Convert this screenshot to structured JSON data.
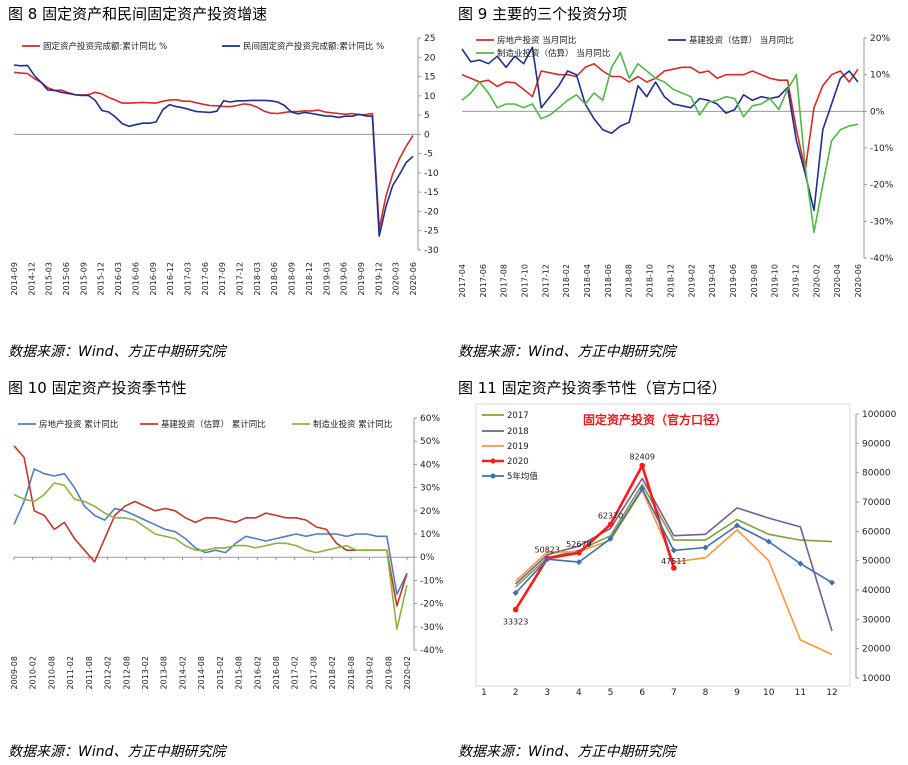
{
  "figures": [
    {
      "title": "图  8   固定资产和民间固定资产投资增速",
      "source": "数据来源：Wind、方正中期研究院"
    },
    {
      "title": "图  9   主要的三个投资分项",
      "source": "数据来源：Wind、方正中期研究院"
    },
    {
      "title": "图  10   固定资产投资季节性",
      "source": "数据来源：Wind、方正中期研究院"
    },
    {
      "title": "图  11   固定资产投资季节性（官方口径）",
      "source": "数据来源：Wind、方正中期研究院"
    }
  ],
  "colors": {
    "red": "#d42a2a",
    "navy": "#1f2f8a",
    "green": "#4fb848",
    "blue": "#4f7fc0",
    "darkred": "#c0392b",
    "lime": "#8db33a",
    "olive": "#7aa33a",
    "purple": "#7e5a8f",
    "orange": "#f39a3a",
    "bright": "#ff1a1a",
    "steel": "#3f6fb0"
  },
  "chart_data": [
    {
      "type": "line",
      "title": "图  8   固定资产和民间固定资产投资增速",
      "yaxis_side": "right",
      "ylim": [
        -30,
        25
      ],
      "ticks": [
        25,
        20,
        15,
        10,
        5,
        0,
        -5,
        -10,
        -15,
        -20,
        -25,
        -30
      ],
      "x_labels": [
        "2014-09",
        "2014-12",
        "2015-03",
        "2015-06",
        "2015-09",
        "2015-12",
        "2016-03",
        "2016-06",
        "2016-09",
        "2016-12",
        "2017-03",
        "2017-06",
        "2017-09",
        "2017-12",
        "2018-03",
        "2018-06",
        "2018-09",
        "2018-12",
        "2019-03",
        "2019-06",
        "2019-09",
        "2019-12",
        "2020-03",
        "2020-06"
      ],
      "series": [
        {
          "name": "固定资产投资完成额:累计同比  %",
          "color": "#d42a2a",
          "values": [
            16.1,
            15.9,
            15.8,
            14.5,
            13.5,
            12.1,
            11.4,
            11.5,
            10.8,
            10.3,
            10.2,
            10.3,
            10.9,
            10.5,
            9.6,
            8.9,
            8.1,
            8.1,
            8.2,
            8.3,
            8.2,
            8.1,
            8.6,
            8.9,
            9.0,
            8.6,
            8.6,
            8.2,
            7.8,
            7.5,
            7.4,
            7.2,
            7.2,
            7.5,
            7.9,
            7.7,
            7.0,
            6.0,
            5.5,
            5.4,
            5.7,
            5.9,
            5.9,
            6.1,
            6.1,
            6.3,
            5.8,
            5.6,
            5.4,
            5.2,
            5.4,
            5.1,
            5.1,
            5.4,
            -24.5,
            -16.1,
            -10.3,
            -6.3,
            -3.1,
            -0.3
          ]
        },
        {
          "name": "民间固定资产投资完成额:累计同比  %",
          "color": "#1f2f8a",
          "values": [
            18.0,
            17.8,
            17.9,
            15.3,
            13.5,
            11.5,
            11.4,
            10.9,
            10.6,
            10.3,
            10.1,
            10.1,
            8.8,
            6.2,
            5.8,
            4.5,
            2.8,
            2.1,
            2.5,
            2.9,
            2.9,
            3.2,
            6.4,
            7.7,
            7.2,
            6.9,
            6.4,
            5.9,
            5.8,
            5.7,
            6.0,
            8.7,
            8.4,
            8.7,
            8.7,
            8.8,
            8.8,
            8.8,
            8.7,
            8.4,
            7.5,
            5.8,
            5.3,
            5.7,
            5.4,
            5.1,
            4.8,
            4.7,
            4.4,
            4.7,
            4.7,
            5.2,
            4.8,
            4.7,
            -26.4,
            -18.8,
            -13.3,
            -10.4,
            -7.3,
            -5.7
          ]
        }
      ]
    },
    {
      "type": "line",
      "title": "图  9   主要的三个投资分项",
      "yaxis_side": "right",
      "ylim": [
        -40,
        20
      ],
      "ticks": [
        "20%",
        "10%",
        "0%",
        "-10%",
        "-20%",
        "-30%",
        "-40%"
      ],
      "tick_values": [
        20,
        10,
        0,
        -10,
        -20,
        -30,
        -40
      ],
      "x_labels": [
        "2017-04",
        "2017-06",
        "2017-08",
        "2017-10",
        "2017-12",
        "2018-02",
        "2018-04",
        "2018-06",
        "2018-08",
        "2018-10",
        "2018-12",
        "2019-02",
        "2019-04",
        "2019-06",
        "2019-08",
        "2019-10",
        "2019-12",
        "2020-02",
        "2020-04",
        "2020-06"
      ],
      "series": [
        {
          "name": "房地产投资  当月同比",
          "color": "#d42a2a",
          "values": [
            10.0,
            9.0,
            8.0,
            8.5,
            6.8,
            8.0,
            7.8,
            6.0,
            4.0,
            11.0,
            10.5,
            10.0,
            10.0,
            9.5,
            12.0,
            13.0,
            11.0,
            9.5,
            9.5,
            8.0,
            9.5,
            8.0,
            9.0,
            11.0,
            11.5,
            12.0,
            12.0,
            10.5,
            11.0,
            9.0,
            10.0,
            10.0,
            10.0,
            11.0,
            10.0,
            9.0,
            8.5,
            8.5,
            -5.0,
            -16.0,
            1.0,
            7.0,
            10.0,
            11.0,
            8.0,
            11.5
          ]
        },
        {
          "name": "基建投资（估算）  当月同比",
          "color": "#1f2f8a",
          "values": [
            17.0,
            13.5,
            14.0,
            13.0,
            15.0,
            12.0,
            15.0,
            13.0,
            17.5,
            1.0,
            4.0,
            7.0,
            11.0,
            10.0,
            2.0,
            -2.0,
            -5.0,
            -6.0,
            -4.0,
            -3.0,
            7.0,
            4.0,
            8.0,
            4.0,
            2.0,
            1.5,
            1.0,
            3.5,
            3.0,
            2.0,
            -0.5,
            0.5,
            4.5,
            3.0,
            4.0,
            3.5,
            4.0,
            6.5,
            -8.0,
            -17.0,
            -27.0,
            -5.0,
            2.0,
            9.0,
            11.0,
            8.0
          ]
        },
        {
          "name": "制造业投资（估算）  当月同比",
          "color": "#4fb848",
          "values": [
            3.0,
            5.0,
            8.0,
            5.0,
            1.0,
            2.0,
            2.0,
            1.0,
            2.0,
            -2.0,
            -1.0,
            1.0,
            3.0,
            4.5,
            2.0,
            5.0,
            3.0,
            12.0,
            16.0,
            9.0,
            13.0,
            11.0,
            9.0,
            8.0,
            6.0,
            5.0,
            4.0,
            -1.0,
            2.5,
            3.0,
            4.0,
            3.5,
            -1.5,
            1.5,
            2.0,
            3.5,
            0.5,
            6.0,
            10.0,
            -15.0,
            -33.0,
            -20.0,
            -8.0,
            -5.0,
            -4.0,
            -3.5
          ]
        }
      ]
    },
    {
      "type": "line",
      "title": "图  10   固定资产投资季节性",
      "yaxis_side": "right",
      "ylim": [
        -40,
        60
      ],
      "ticks": [
        "60%",
        "50%",
        "40%",
        "30%",
        "20%",
        "10%",
        "0%",
        "-10%",
        "-20%",
        "-30%",
        "-40%"
      ],
      "tick_values": [
        60,
        50,
        40,
        30,
        20,
        10,
        0,
        -10,
        -20,
        -30,
        -40
      ],
      "x_labels": [
        "2009-08",
        "2010-02",
        "2010-08",
        "2011-02",
        "2011-08",
        "2012-02",
        "2012-08",
        "2013-02",
        "2013-08",
        "2014-02",
        "2014-08",
        "2015-02",
        "2015-08",
        "2016-02",
        "2016-08",
        "2017-02",
        "2017-08",
        "2018-02",
        "2018-08",
        "2019-02",
        "2019-08",
        "2020-02"
      ],
      "series": [
        {
          "name": "房地产投资  累计同比",
          "color": "#4f7fc0",
          "values": [
            14,
            24,
            38,
            36,
            35,
            36,
            30,
            22,
            18,
            16,
            21,
            20,
            18,
            16,
            14,
            12,
            11,
            8,
            4,
            2,
            3,
            2,
            6,
            9,
            8,
            7,
            8,
            9,
            10,
            9,
            10,
            10,
            10,
            9,
            10,
            10,
            9,
            9,
            -16,
            -7
          ]
        },
        {
          "name": "基建投资（估算）  累计同比",
          "color": "#c0392b",
          "values": [
            48,
            43,
            20,
            18,
            12,
            15,
            8,
            3,
            -2,
            8,
            18,
            22,
            24,
            22,
            20,
            21,
            20,
            17,
            15,
            17,
            17,
            16,
            15,
            17,
            17,
            19,
            18,
            17,
            17,
            16,
            13,
            12,
            6,
            3,
            3,
            3,
            3,
            3,
            -21,
            -7
          ]
        },
        {
          "name": "制造业投资  累计同比",
          "color": "#8db33a",
          "values": [
            27,
            25,
            24,
            27,
            32,
            31,
            25,
            24,
            22,
            19,
            17,
            17,
            16,
            13,
            10,
            9,
            8,
            5,
            3,
            3,
            4,
            4,
            5,
            5,
            4,
            5,
            6,
            6,
            5,
            3,
            2,
            3,
            4,
            5,
            3,
            3,
            3,
            3,
            -31,
            -12
          ]
        }
      ]
    },
    {
      "type": "line",
      "title": "固定资产投资（官方口径）",
      "header": "图  11   固定资产投资季节性（官方口径）",
      "yaxis_side": "right",
      "ylim": [
        10000,
        100000
      ],
      "ticks": [
        100000,
        90000,
        80000,
        70000,
        60000,
        50000,
        40000,
        30000,
        20000,
        10000
      ],
      "categories": [
        "1",
        "2",
        "3",
        "4",
        "5",
        "6",
        "7",
        "8",
        "9",
        "10",
        "11",
        "12"
      ],
      "series": [
        {
          "name": "2017",
          "color": "#7aa33a",
          "values": [
            null,
            41000,
            51000,
            53500,
            58500,
            76000,
            57000,
            57000,
            64000,
            59000,
            57000,
            56500
          ]
        },
        {
          "name": "2018",
          "color": "#7e5a8f",
          "values": [
            null,
            42000,
            52000,
            55000,
            61000,
            78000,
            58500,
            59000,
            68000,
            64500,
            61500,
            26000
          ]
        },
        {
          "name": "2019",
          "color": "#f39a3a",
          "values": [
            null,
            43000,
            53000,
            53000,
            57000,
            74000,
            49500,
            51000,
            60500,
            50000,
            23000,
            18000
          ]
        },
        {
          "name": "2020",
          "color": "#ff1a1a",
          "values": [
            null,
            33323,
            50823,
            52679,
            62370,
            82409,
            47511,
            null,
            null,
            null,
            null,
            null
          ],
          "labels": [
            "",
            "33323",
            "50823",
            "52679",
            "62370",
            "82409",
            "47511",
            "",
            "",
            "",
            "",
            ""
          ]
        },
        {
          "name": "5年均值",
          "color": "#3f6fb0",
          "values": [
            null,
            39000,
            50500,
            49500,
            57500,
            74500,
            53500,
            54500,
            62000,
            56500,
            49000,
            42500
          ]
        }
      ]
    }
  ]
}
